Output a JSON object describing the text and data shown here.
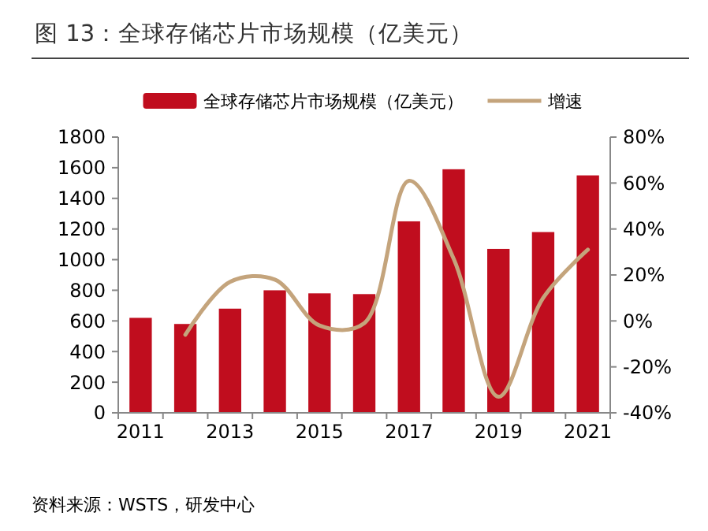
{
  "chart_data": {
    "type": "bar",
    "title": "图 13：全球存储芯片市场规模（亿美元）",
    "categories": [
      "2011",
      null,
      "2013",
      null,
      "2015",
      null,
      "2017",
      null,
      "2019",
      null,
      "2021"
    ],
    "series": [
      {
        "name": "全球存储芯片市场规模（亿美元）",
        "color": "#c00d1e",
        "values": [
          620,
          580,
          680,
          800,
          780,
          775,
          1250,
          1590,
          1070,
          1180,
          1550
        ]
      },
      {
        "name": "增速",
        "type": "line",
        "axis": "y2",
        "color": "#c4a47c",
        "values": [
          null,
          -6,
          17,
          18,
          -2,
          -1,
          61,
          27,
          -33,
          10,
          31
        ]
      }
    ],
    "ylim": [
      0,
      1800
    ],
    "yticks": [
      0,
      200,
      400,
      600,
      800,
      1000,
      1200,
      1400,
      1600,
      1800
    ],
    "y2lim": [
      -40,
      80
    ],
    "y2ticks": [
      {
        "value": -40,
        "label": "-40%"
      },
      {
        "value": -20,
        "label": "-20%"
      },
      {
        "value": 0,
        "label": "0%"
      },
      {
        "value": 20,
        "label": "20%"
      },
      {
        "value": 40,
        "label": "40%"
      },
      {
        "value": 60,
        "label": "60%"
      },
      {
        "value": 80,
        "label": "80%"
      }
    ],
    "legend": "top",
    "grid": false,
    "annotations": [
      "资料来源：WSTS，研发中心"
    ]
  }
}
